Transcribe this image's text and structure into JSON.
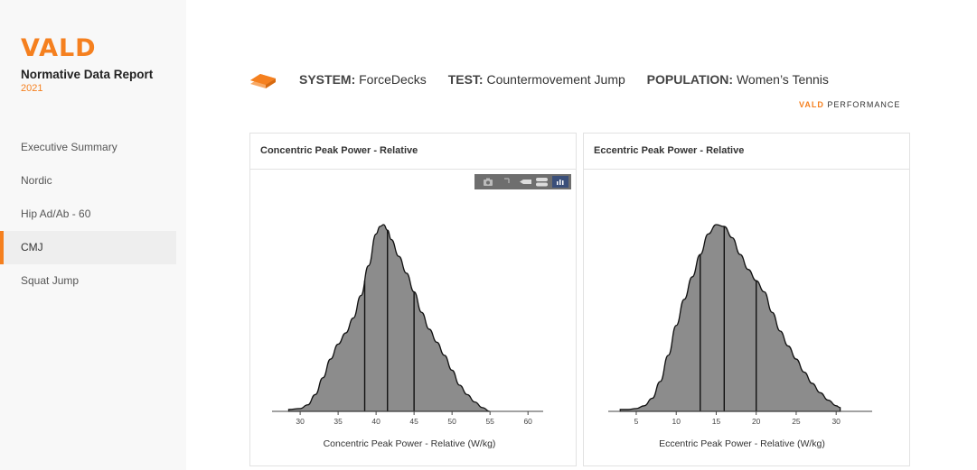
{
  "sidebar": {
    "logo": "VALD",
    "report_title": "Normative Data Report",
    "year": "2021",
    "items": [
      {
        "label": "Executive Summary"
      },
      {
        "label": "Nordic"
      },
      {
        "label": "Hip Ad/Ab - 60"
      },
      {
        "label": "CMJ",
        "active": true
      },
      {
        "label": "Squat Jump"
      }
    ]
  },
  "header": {
    "system_key": "SYSTEM:",
    "system_val": "ForceDecks",
    "test_key": "TEST:",
    "test_val": "Countermovement Jump",
    "pop_key": "POPULATION:",
    "pop_val": "Women’s Tennis",
    "brand_v": "VALD",
    "brand_rest": "PERFORMANCE"
  },
  "modebar": {
    "icons": [
      "camera-icon",
      "zoom-icon",
      "hover-closest-icon",
      "hover-compare-icon",
      "plotly-logo-icon"
    ]
  },
  "colors": {
    "accent": "#f5801f",
    "fill": "#8c8c8c"
  },
  "chart_data": [
    {
      "type": "area",
      "title": "Concentric Peak Power - Relative",
      "xlabel": "Concentric Peak Power - Relative (W/kg)",
      "ylabel": "",
      "xlim": [
        26.3,
        62
      ],
      "xticks": [
        30,
        35,
        40,
        45,
        50,
        55,
        60
      ],
      "grid": false,
      "x": [
        28.5,
        30,
        31,
        32,
        33,
        34,
        35,
        36,
        37,
        38,
        39,
        40,
        40.5,
        41,
        41.5,
        42,
        43,
        44,
        45,
        46,
        47,
        48,
        49,
        50,
        51,
        52,
        53,
        54,
        55
      ],
      "y": [
        0.01,
        0.015,
        0.035,
        0.09,
        0.18,
        0.28,
        0.36,
        0.42,
        0.5,
        0.62,
        0.78,
        0.95,
        0.99,
        1.0,
        0.97,
        0.92,
        0.83,
        0.74,
        0.64,
        0.53,
        0.44,
        0.37,
        0.3,
        0.22,
        0.14,
        0.09,
        0.05,
        0.02,
        0.0
      ],
      "vlines": [
        38.5,
        41.5,
        45
      ]
    },
    {
      "type": "area",
      "title": "Eccentric Peak Power - Relative",
      "xlabel": "Eccentric Peak Power - Relative (W/kg)",
      "ylabel": "",
      "xlim": [
        1.5,
        34.5
      ],
      "xticks": [
        5,
        10,
        15,
        20,
        25,
        30
      ],
      "grid": false,
      "x": [
        3,
        4,
        5,
        6,
        7,
        8,
        9,
        10,
        11,
        12,
        13,
        14,
        15,
        16,
        17,
        18,
        19,
        20,
        21,
        22,
        23,
        24,
        25,
        26,
        27,
        28,
        29,
        30,
        30.5
      ],
      "y": [
        0.01,
        0.01,
        0.015,
        0.03,
        0.07,
        0.16,
        0.3,
        0.46,
        0.6,
        0.72,
        0.84,
        0.95,
        1.0,
        0.99,
        0.93,
        0.84,
        0.76,
        0.7,
        0.64,
        0.53,
        0.43,
        0.35,
        0.28,
        0.21,
        0.15,
        0.1,
        0.06,
        0.03,
        0.02
      ],
      "vlines": [
        13,
        16,
        20
      ]
    }
  ]
}
